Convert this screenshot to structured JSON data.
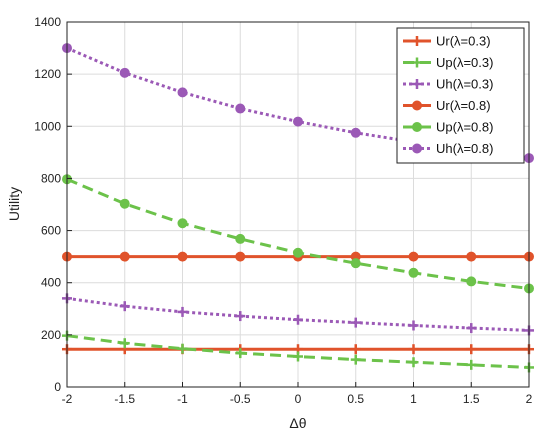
{
  "chart_data": {
    "type": "line",
    "title": "",
    "xlabel": "Δθ",
    "ylabel": "Utility",
    "xlim": [
      -2,
      2
    ],
    "ylim": [
      0,
      1400
    ],
    "x_ticks": [
      -2,
      -1.5,
      -1,
      -0.5,
      0,
      0.5,
      1,
      1.5,
      2
    ],
    "x_tick_labels": [
      "-2",
      "-1.5",
      "-1",
      "-0.5",
      "0",
      "0.5",
      "1",
      "1.5",
      "2"
    ],
    "y_ticks": [
      0,
      200,
      400,
      600,
      800,
      1000,
      1200,
      1400
    ],
    "y_tick_labels": [
      "0",
      "200",
      "400",
      "600",
      "800",
      "1000",
      "1200",
      "1400"
    ],
    "grid": true,
    "legend_position": "top-right",
    "x": [
      -2,
      -1.5,
      -1,
      -0.5,
      0,
      0.5,
      1,
      1.5,
      2
    ],
    "series": [
      {
        "name": "Ur(λ=0.3)",
        "color": "#e0532b",
        "line": "solid",
        "marker": "plus",
        "values": [
          145,
          145,
          145,
          145,
          145,
          145,
          145,
          145,
          145
        ]
      },
      {
        "name": "Up(λ=0.3)",
        "color": "#6cc24a",
        "line": "dashed",
        "marker": "plus",
        "values": [
          197,
          168,
          147,
          130,
          117,
          105,
          95,
          85,
          75
        ]
      },
      {
        "name": "Uh(λ=0.3)",
        "color": "#9b59b6",
        "line": "dotted",
        "marker": "plus",
        "values": [
          340,
          310,
          288,
          272,
          258,
          247,
          236,
          226,
          217
        ]
      },
      {
        "name": "Ur(λ=0.8)",
        "color": "#e0532b",
        "line": "solid",
        "marker": "circle",
        "values": [
          500,
          500,
          500,
          500,
          500,
          500,
          500,
          500,
          500
        ]
      },
      {
        "name": "Up(λ=0.8)",
        "color": "#6cc24a",
        "line": "dashed",
        "marker": "circle",
        "values": [
          797,
          703,
          628,
          568,
          515,
          475,
          438,
          405,
          378
        ]
      },
      {
        "name": "Uh(λ=0.8)",
        "color": "#9b59b6",
        "line": "dotted",
        "marker": "circle",
        "values": [
          1300,
          1205,
          1130,
          1068,
          1018,
          975,
          940,
          908,
          878
        ]
      }
    ]
  }
}
